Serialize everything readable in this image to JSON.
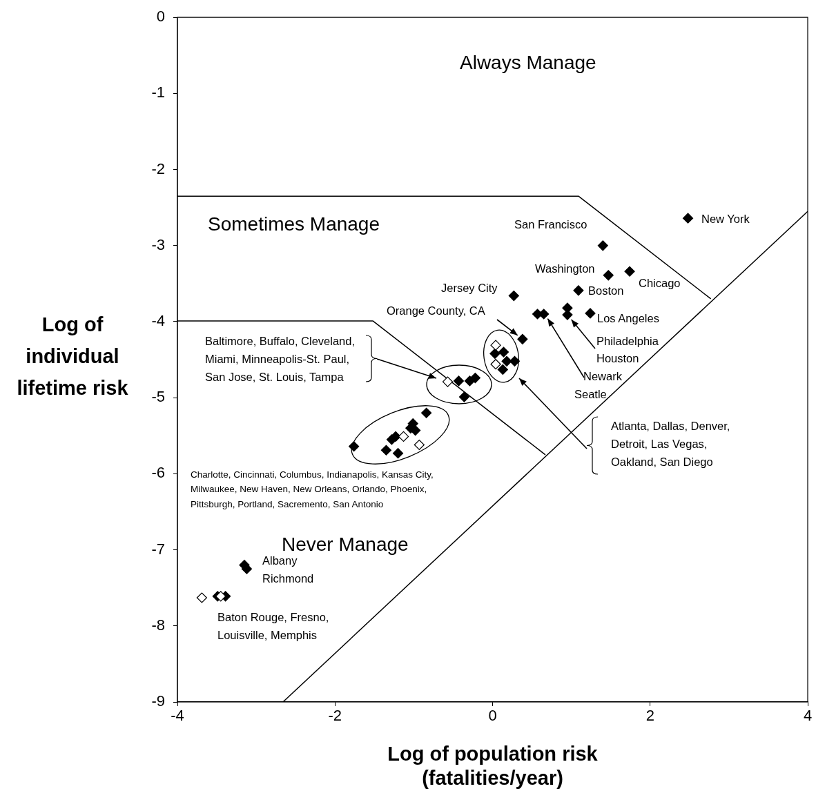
{
  "chart_data": {
    "type": "scatter",
    "xlabel": "Log of population risk\n(fatalities/year)",
    "ylabel": "Log of\nindividual\nlifetime risk",
    "xlim": [
      -4,
      4
    ],
    "xticks": [
      -4,
      -2,
      0,
      2,
      4
    ],
    "ylim": [
      -9,
      0
    ],
    "yticks": [
      0,
      -1,
      -2,
      -3,
      -4,
      -5,
      -6,
      -7,
      -8,
      -9
    ],
    "grid": false,
    "legend": false,
    "marker": "diamond",
    "series": [
      {
        "color": "#000000",
        "x": [
          2.48,
          1.4,
          1.47,
          1.74,
          1.09,
          0.27,
          1.24,
          0.95,
          0.95,
          0.57,
          0.65,
          0.38,
          0.03,
          0.14,
          0.18,
          0.28,
          0.13,
          -0.43,
          -0.29,
          -0.22,
          -0.36,
          -0.84,
          -1.01,
          -1.04,
          -0.98,
          -1.23,
          -1.28,
          -1.35,
          -1.2,
          -1.76,
          -3.12,
          -3.15,
          -3.49,
          -3.39
        ],
        "values": [
          -2.64,
          -3.0,
          -3.39,
          -3.34,
          -3.59,
          -3.66,
          -3.89,
          -3.82,
          -3.91,
          -3.9,
          -3.9,
          -4.23,
          -4.42,
          -4.4,
          -4.52,
          -4.52,
          -4.63,
          -4.78,
          -4.78,
          -4.74,
          -4.99,
          -5.2,
          -5.34,
          -5.4,
          -5.43,
          -5.51,
          -5.55,
          -5.69,
          -5.73,
          -5.64,
          -7.25,
          -7.2,
          -7.61,
          -7.61
        ]
      },
      {
        "color": "#ffffff",
        "x": [
          0.04,
          0.04,
          -0.57,
          -1.13,
          -0.93,
          -3.69,
          -3.45
        ],
        "values": [
          -4.31,
          -4.56,
          -4.79,
          -5.51,
          -5.62,
          -7.63,
          -7.61
        ]
      },
      {
        "type": "line",
        "marker": "none",
        "color": "#000000",
        "x": [
          -4,
          1.09,
          2.77
        ],
        "values": [
          -2.35,
          -2.35,
          -3.7
        ]
      },
      {
        "type": "line",
        "marker": "none",
        "color": "#000000",
        "x": [
          -4,
          -1.52,
          0.67
        ],
        "values": [
          -3.99,
          -3.99,
          -5.75
        ]
      },
      {
        "type": "line",
        "marker": "none",
        "color": "#000000",
        "x": [
          -2.66,
          4
        ],
        "values": [
          -9,
          -2.55
        ]
      }
    ],
    "annotations": [
      "Always Manage",
      "Sometimes Manage",
      "Never Manage",
      "San Francisco",
      "New York",
      "Washington",
      "Chicago",
      "Jersey City",
      "Boston",
      {
        "text": "Orange County, CA",
        "x": 0.38,
        "y": -4.23
      },
      "Los Angeles",
      {
        "text": "Philadelphia",
        "x": 0.95,
        "y": -3.91
      },
      "Houston",
      {
        "text": "Newark",
        "x": 0.7,
        "y": -3.96
      },
      "Seatle",
      "Baltimore, Buffalo, Cleveland,\nMiami, Minneapolis-St. Paul,\nSan Jose, St. Louis, Tampa",
      "Atlanta, Dallas, Denver,\nDetroit, Las Vegas,\nOakland, San Diego",
      "Charlotte, Cincinnati, Columbus, Indianapolis, Kansas City,\nMilwaukee, New Haven, New Orleans, Orlando, Phoenix,\nPittsburgh, Portland, Sacremento, San Antonio",
      "Albany",
      "Richmond",
      "Baton Rouge, Fresno,\nLouisville, Memphis"
    ]
  }
}
